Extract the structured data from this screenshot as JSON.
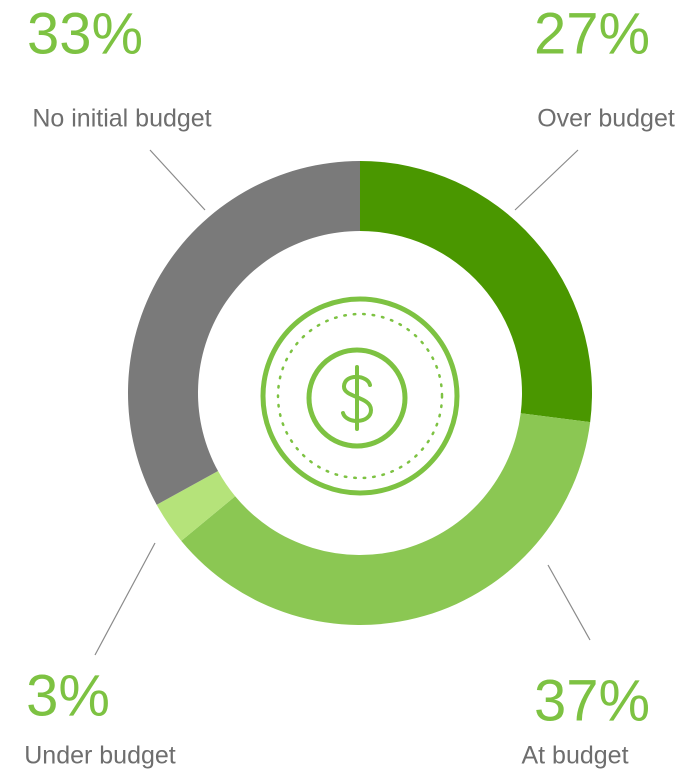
{
  "chart_data": {
    "type": "pie",
    "categories": [
      "Over budget",
      "At budget",
      "Under budget",
      "No initial budget"
    ],
    "values": [
      27,
      37,
      3,
      33
    ],
    "value_labels": [
      "27%",
      "37%",
      "3%",
      "33%"
    ],
    "colors": [
      "#4a9700",
      "#8bc753",
      "#b5e37a",
      "#7a7a7a"
    ],
    "donut": true
  }
}
